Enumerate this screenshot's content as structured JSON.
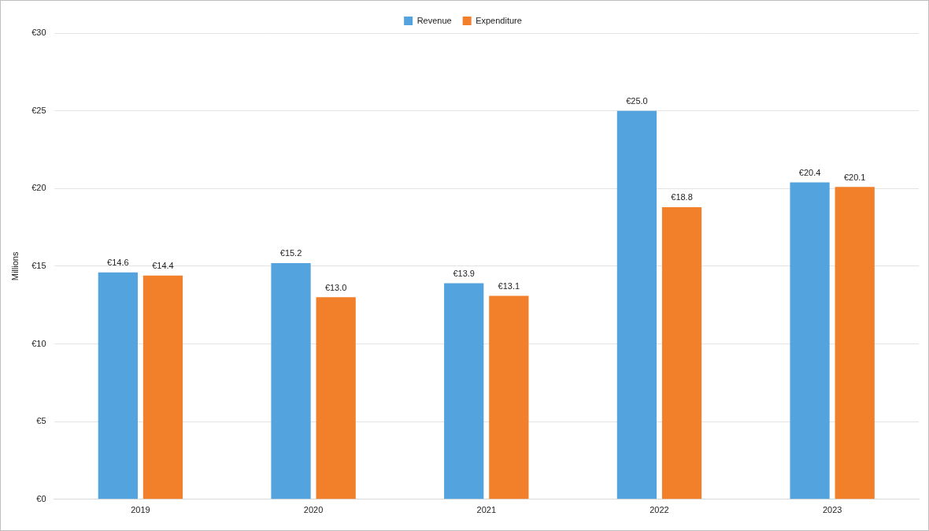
{
  "chart_data": {
    "type": "bar",
    "y_label": "Millions",
    "categories": [
      "2019",
      "2020",
      "2021",
      "2022",
      "2023"
    ],
    "series": [
      {
        "name": "Revenue",
        "color": "#53A3DF",
        "values": [
          14.6,
          15.2,
          13.9,
          25.0,
          20.4
        ],
        "value_labels": [
          "€14.6",
          "€15.2",
          "€13.9",
          "€25.0",
          "€20.4"
        ]
      },
      {
        "name": "Expenditure",
        "color": "#F27F2A",
        "values": [
          14.4,
          13.0,
          13.1,
          18.8,
          20.1
        ],
        "value_labels": [
          "€14.4",
          "€13.0",
          "€13.1",
          "€18.8",
          "€20.1"
        ]
      }
    ],
    "ylim": [
      0,
      30
    ],
    "yticks": [
      {
        "value": 0,
        "label": "€0"
      },
      {
        "value": 5,
        "label": "€5"
      },
      {
        "value": 10,
        "label": "€10"
      },
      {
        "value": 15,
        "label": "€15"
      },
      {
        "value": 20,
        "label": "€20"
      },
      {
        "value": 25,
        "label": "€25"
      },
      {
        "value": 30,
        "label": "€30"
      }
    ],
    "grid": true,
    "legend": "top",
    "data_labels": true
  }
}
